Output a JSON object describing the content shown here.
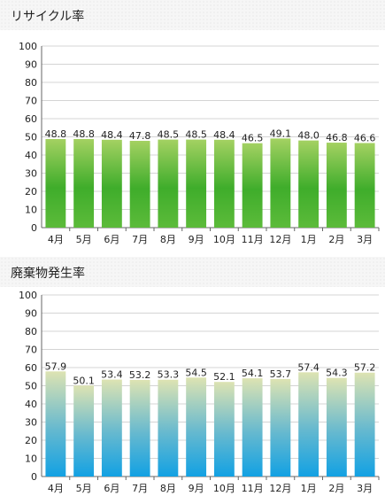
{
  "chart_data": [
    {
      "type": "bar",
      "title": "リサイクル率",
      "categories": [
        "4月",
        "5月",
        "6月",
        "7月",
        "8月",
        "9月",
        "10月",
        "11月",
        "12月",
        "1月",
        "2月",
        "3月"
      ],
      "values": [
        48.8,
        48.8,
        48.4,
        47.8,
        48.5,
        48.5,
        48.4,
        46.5,
        49.1,
        48.0,
        46.8,
        46.6
      ],
      "ylim": [
        0,
        100
      ],
      "yticks": [
        0,
        10,
        20,
        30,
        40,
        50,
        60,
        70,
        80,
        90,
        100
      ],
      "grid": true,
      "colors": {
        "top": "#a4d162",
        "mid": "#3fad2b",
        "bottom": "#5cbb3a"
      }
    },
    {
      "type": "bar",
      "title": "廃棄物発生率",
      "categories": [
        "4月",
        "5月",
        "6月",
        "7月",
        "8月",
        "9月",
        "10月",
        "11月",
        "12月",
        "1月",
        "2月",
        "3月"
      ],
      "values": [
        57.9,
        50.1,
        53.4,
        53.2,
        53.3,
        54.5,
        52.1,
        54.1,
        53.7,
        57.4,
        54.3,
        57.2
      ],
      "ylim": [
        0,
        100
      ],
      "yticks": [
        0,
        10,
        20,
        30,
        40,
        50,
        60,
        70,
        80,
        90,
        100
      ],
      "grid": true,
      "colors": {
        "top": "#dde3b2",
        "mid": "#66b9cf",
        "bottom": "#12a1e3"
      }
    }
  ]
}
